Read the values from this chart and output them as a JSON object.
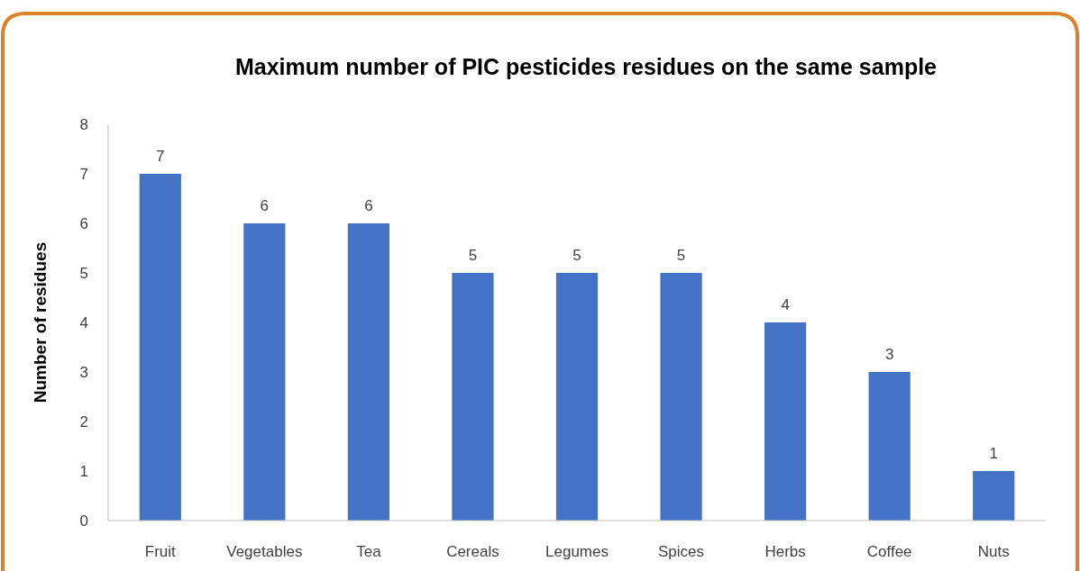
{
  "chart_data": {
    "type": "bar",
    "title": "Maximum number of PIC pesticides residues on the same sample",
    "ylabel": "Number of residues",
    "categories": [
      "Fruit",
      "Vegetables",
      "Tea",
      "Cereals",
      "Legumes",
      "Spices",
      "Herbs",
      "Coffee",
      "Nuts"
    ],
    "values": [
      7,
      6,
      6,
      5,
      5,
      5,
      4,
      3,
      1
    ],
    "color": "#4472c4",
    "ylim": [
      0,
      8
    ],
    "yticks": [
      0,
      1,
      2,
      3,
      4,
      5,
      6,
      7,
      8
    ],
    "grid": false,
    "data_labels": true
  }
}
